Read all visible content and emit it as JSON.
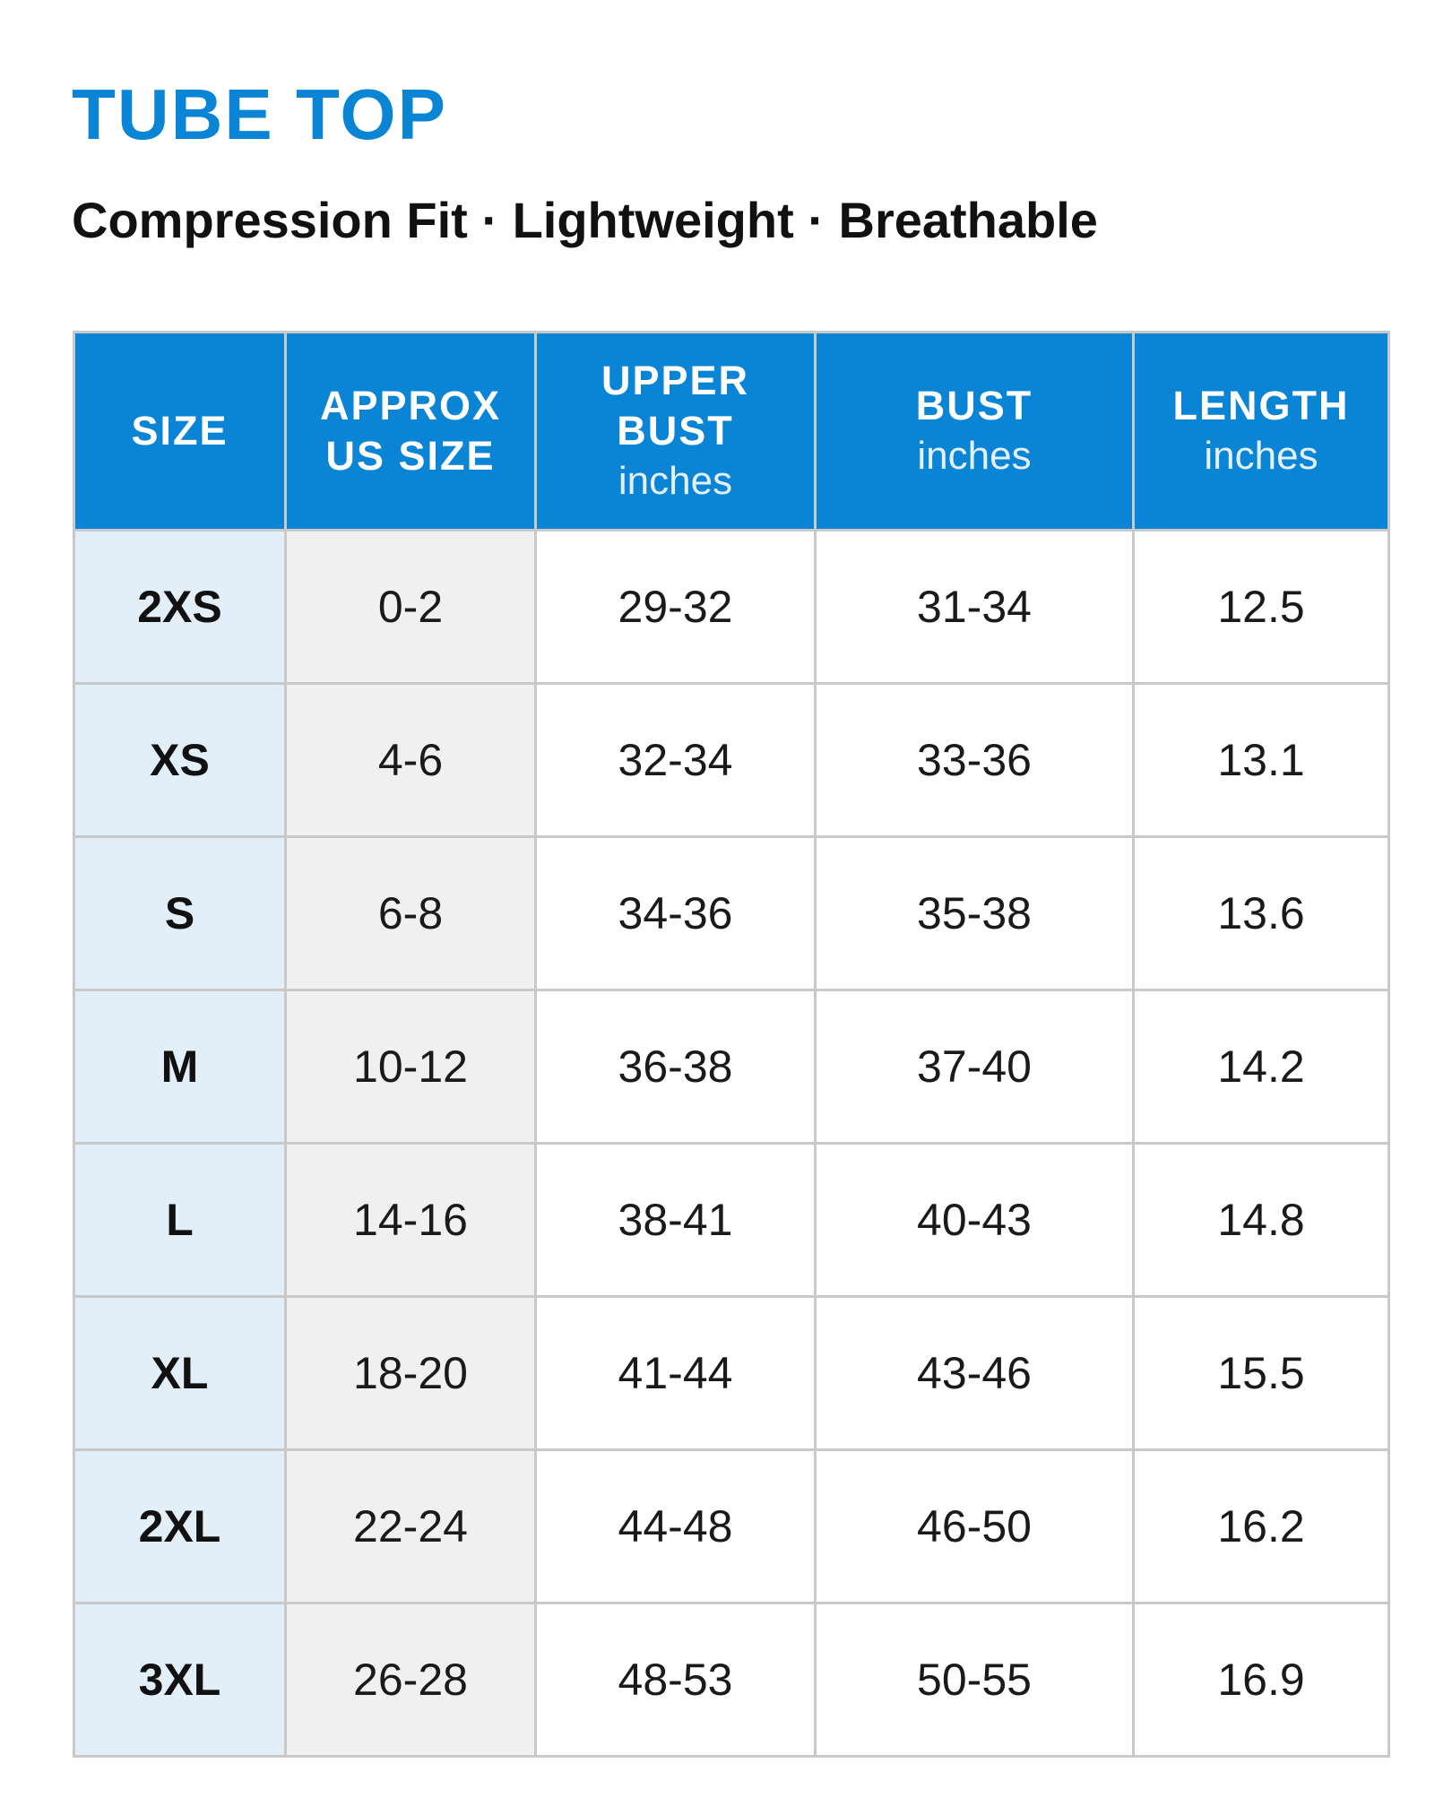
{
  "title": "TUBE TOP",
  "subtitle": "Compression Fit · Lightweight · Breathable",
  "colors": {
    "accent": "#0a84d4",
    "size_column_bg": "#e2eef8",
    "us_size_column_bg": "#f0f0f0",
    "grid_lines": "#c9c9c9"
  },
  "table": {
    "headers": [
      {
        "lines": [
          "SIZE"
        ],
        "unit": ""
      },
      {
        "lines": [
          "APPROX",
          "US SIZE"
        ],
        "unit": ""
      },
      {
        "lines": [
          "UPPER",
          "BUST"
        ],
        "unit": "inches"
      },
      {
        "lines": [
          "BUST"
        ],
        "unit": "inches"
      },
      {
        "lines": [
          "LENGTH"
        ],
        "unit": "inches"
      }
    ],
    "rows": [
      [
        "2XS",
        "0-2",
        "29-32",
        "31-34",
        "12.5"
      ],
      [
        "XS",
        "4-6",
        "32-34",
        "33-36",
        "13.1"
      ],
      [
        "S",
        "6-8",
        "34-36",
        "35-38",
        "13.6"
      ],
      [
        "M",
        "10-12",
        "36-38",
        "37-40",
        "14.2"
      ],
      [
        "L",
        "14-16",
        "38-41",
        "40-43",
        "14.8"
      ],
      [
        "XL",
        "18-20",
        "41-44",
        "43-46",
        "15.5"
      ],
      [
        "2XL",
        "22-24",
        "44-48",
        "46-50",
        "16.2"
      ],
      [
        "3XL",
        "26-28",
        "48-53",
        "50-55",
        "16.9"
      ]
    ]
  }
}
